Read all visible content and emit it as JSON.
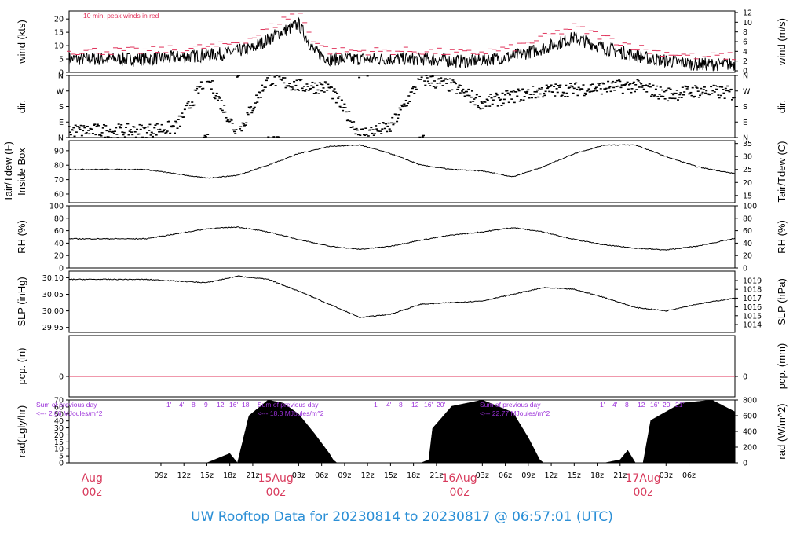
{
  "footer": {
    "title": "UW Rooftop Data for 20230814  to  20230817 @ 06:57:01  (UTC)"
  },
  "colors": {
    "frame": "#000000",
    "data": "#000000",
    "peak": "#e0325a",
    "annotation": "#9b30d9",
    "date_label": "#d83a5c",
    "footer": "#2b8fd6"
  },
  "chart_data": [
    {
      "panel": "wind",
      "type": "line",
      "ylabel_left": "wind (kts)",
      "ylabel_right": "wind (m/s)",
      "yticks_left": [
        "0",
        "5",
        "10",
        "15",
        "20"
      ],
      "yticks_right": [
        "0",
        "2",
        "4",
        "6",
        "8",
        "10",
        "12"
      ],
      "ylim": [
        0,
        23
      ],
      "annotation": "10 min. peak winds in red",
      "series": [
        {
          "x_hours": [
            0,
            6,
            10,
            14,
            17,
            20,
            22,
            24,
            30,
            36,
            42,
            48,
            52,
            56,
            60,
            66,
            72,
            78,
            84,
            92,
            96,
            100,
            104,
            108,
            112,
            116,
            120
          ],
          "values": [
            5,
            6,
            7,
            9,
            14,
            18,
            8,
            5,
            5,
            5,
            4,
            6,
            9,
            13,
            9,
            5,
            3,
            3,
            4,
            6,
            11,
            9,
            7,
            8,
            5,
            4,
            3
          ]
        },
        {
          "x_hours": [
            0,
            6,
            10,
            14,
            17,
            20,
            22,
            24,
            30,
            36,
            42,
            48,
            52,
            56,
            60,
            66,
            72,
            78,
            84,
            92,
            96,
            100,
            104,
            108,
            112,
            116,
            120
          ],
          "values": [
            8,
            9,
            10,
            13,
            18,
            23,
            12,
            8,
            8,
            8,
            7,
            9,
            13,
            17,
            13,
            8,
            6,
            6,
            7,
            9,
            16,
            13,
            10,
            11,
            8,
            7,
            6
          ]
        }
      ]
    },
    {
      "panel": "dir",
      "type": "scatter",
      "ylabel_left": "dir.",
      "ylabel_right": "dir.",
      "yticks": [
        "N",
        "E",
        "S",
        "W",
        "N"
      ],
      "ylim": [
        0,
        360
      ],
      "series": [
        {
          "x_hours": [
            0,
            4,
            8,
            12,
            16,
            20,
            24,
            28,
            32,
            36,
            40,
            44,
            48,
            52,
            56,
            60,
            64,
            68,
            72,
            76,
            80,
            84,
            88,
            92,
            96,
            100,
            104,
            108,
            112,
            116,
            120
          ],
          "values": [
            40,
            60,
            350,
            20,
            340,
            300,
            290,
            20,
            60,
            340,
            300,
            200,
            240,
            270,
            280,
            290,
            300,
            250,
            270,
            260,
            220,
            250,
            280,
            290,
            300,
            310,
            300,
            290,
            280,
            250,
            270
          ]
        }
      ]
    },
    {
      "panel": "temp",
      "type": "line",
      "ylabel_left": [
        "Tair/Tdew (F)",
        "Inside Box"
      ],
      "ylabel_right": "Tair/Tdew (C)",
      "yticks_left": [
        "60",
        "70",
        "80",
        "90"
      ],
      "yticks_right": [
        "15",
        "20",
        "25",
        "30",
        "35"
      ],
      "ylim": [
        54,
        97
      ],
      "series": [
        {
          "x_hours": [
            0,
            4,
            8,
            12,
            16,
            20,
            24,
            28,
            32,
            36,
            40,
            44,
            48,
            52,
            56,
            60,
            64,
            68,
            72,
            76,
            80,
            84,
            88,
            92,
            96,
            100,
            104,
            108,
            112,
            116,
            120
          ],
          "values": [
            77,
            74,
            71,
            73,
            80,
            88,
            93,
            94,
            88,
            80,
            77,
            76,
            72,
            79,
            88,
            94,
            94,
            86,
            79,
            75,
            72,
            71,
            76,
            84,
            91,
            94,
            93,
            86,
            80,
            78,
            77
          ]
        }
      ]
    },
    {
      "panel": "rh",
      "type": "line",
      "ylabel_left": "RH (%)",
      "ylabel_right": "RH (%)",
      "yticks": [
        "0",
        "20",
        "40",
        "60",
        "80",
        "100"
      ],
      "ylim": [
        0,
        100
      ],
      "series": [
        {
          "x_hours": [
            0,
            4,
            8,
            12,
            16,
            20,
            24,
            28,
            32,
            36,
            40,
            44,
            48,
            52,
            56,
            60,
            64,
            68,
            72,
            76,
            80,
            84,
            88,
            92,
            96,
            100,
            104,
            108,
            112,
            116,
            120
          ],
          "values": [
            47,
            55,
            63,
            66,
            58,
            46,
            35,
            30,
            35,
            45,
            53,
            58,
            65,
            58,
            46,
            37,
            32,
            29,
            35,
            45,
            55,
            62,
            67,
            60,
            50,
            38,
            32,
            30,
            38,
            48,
            55
          ]
        }
      ]
    },
    {
      "panel": "slp",
      "type": "line",
      "ylabel_left": "SLP (inHg)",
      "ylabel_right": "SLP (hPa)",
      "yticks_left": [
        "29.95",
        "30.00",
        "30.05",
        "30.10"
      ],
      "yticks_right": [
        "1014",
        "1015",
        "1016",
        "1017",
        "1018",
        "1019"
      ],
      "ylim": [
        29.935,
        30.12
      ],
      "series": [
        {
          "x_hours": [
            0,
            4,
            8,
            12,
            16,
            20,
            24,
            28,
            32,
            36,
            40,
            44,
            48,
            52,
            56,
            60,
            64,
            68,
            72,
            76,
            80,
            84,
            88,
            92,
            96,
            100,
            104,
            108,
            112,
            116,
            120
          ],
          "values": [
            30.095,
            30.09,
            30.085,
            30.105,
            30.095,
            30.06,
            30.02,
            29.98,
            29.99,
            30.02,
            30.025,
            30.03,
            30.05,
            30.07,
            30.065,
            30.04,
            30.01,
            30.0,
            30.02,
            30.035,
            30.045,
            30.06,
            30.08,
            30.09,
            30.07,
            30.02,
            29.97,
            29.945,
            29.95,
            29.955,
            29.95
          ]
        }
      ]
    },
    {
      "panel": "pcp",
      "type": "line",
      "ylabel_left": "pcp. (in)",
      "ylabel_right": "pcp. (mm)",
      "yticks_left": [
        "0"
      ],
      "yticks_right": [
        "0"
      ],
      "ylim": [
        -0.5,
        1
      ],
      "series": [
        {
          "x_hours": [
            0,
            120
          ],
          "values": [
            0,
            0
          ]
        }
      ]
    },
    {
      "panel": "rad",
      "type": "area",
      "ylabel_left": "rad(Lgly/hr)",
      "ylabel_right": "rad (W/m^2)",
      "yticks_left": [
        "0",
        "5",
        "10",
        "15",
        "20",
        "30",
        "40",
        "50",
        "60",
        "70"
      ],
      "yticks_right": [
        "0",
        "200",
        "400",
        "600",
        "800"
      ],
      "ylim": [
        0,
        800
      ],
      "annotations": [
        {
          "text": "Sum of previous day",
          "sub": "<--- 2.66 MJoules/m^2",
          "x_hours": 4
        },
        {
          "text": "Sum of previous day",
          "sub": "<--- 18.3 MJoules/m^2",
          "x_hours": 28
        },
        {
          "text": "Sum of previous day",
          "sub": "<--- 22.77 MJoules/m^2",
          "x_hours": 52
        }
      ],
      "daily_hour_labels": [
        [
          "1'",
          "4'",
          "8",
          "9",
          "12'",
          "16'",
          "18"
        ],
        [
          "1'",
          "4'",
          "8",
          "12",
          "16'",
          "20'"
        ],
        [
          "1'",
          "4'",
          "8",
          "12",
          "16'",
          "20'",
          "21'"
        ]
      ],
      "series": [
        {
          "x_hours": [
            0,
            8,
            9,
            11,
            12,
            13.5,
            14.5,
            16,
            18,
            20,
            22,
            24,
            24.5,
            25,
            32,
            36,
            37,
            37.5,
            40,
            44,
            48,
            50,
            51.5,
            52,
            60,
            62,
            63,
            64,
            65,
            66,
            70,
            74,
            78,
            80,
            80.5,
            120
          ],
          "values": [
            0,
            0,
            40,
            120,
            0,
            600,
            680,
            800,
            760,
            620,
            380,
            120,
            40,
            0,
            0,
            0,
            40,
            440,
            720,
            800,
            640,
            320,
            40,
            0,
            0,
            40,
            160,
            0,
            0,
            540,
            760,
            800,
            600,
            160,
            0,
            0
          ]
        }
      ]
    }
  ],
  "x_axis": {
    "hour_ticks": [
      "09z",
      "12z",
      "15z",
      "18z",
      "21z",
      "03z",
      "06z",
      "09z",
      "12z",
      "15z",
      "18z",
      "21z",
      "03z",
      "06z",
      "09z",
      "12z",
      "15z",
      "18z",
      "21z",
      "03z",
      "06z"
    ],
    "hour_tick_positions": [
      2,
      5,
      8,
      11,
      14,
      20,
      23,
      26,
      29,
      32,
      35,
      38,
      44,
      47,
      50,
      53,
      56,
      59,
      62,
      68,
      71
    ],
    "date_labels": [
      {
        "day": "Aug",
        "hour": "00z",
        "pos": -7
      },
      {
        "day": "15Aug",
        "hour": "00z",
        "pos": 17
      },
      {
        "day": "16Aug",
        "hour": "00z",
        "pos": 41
      },
      {
        "day": "17Aug",
        "hour": "00z",
        "pos": 65
      }
    ]
  }
}
